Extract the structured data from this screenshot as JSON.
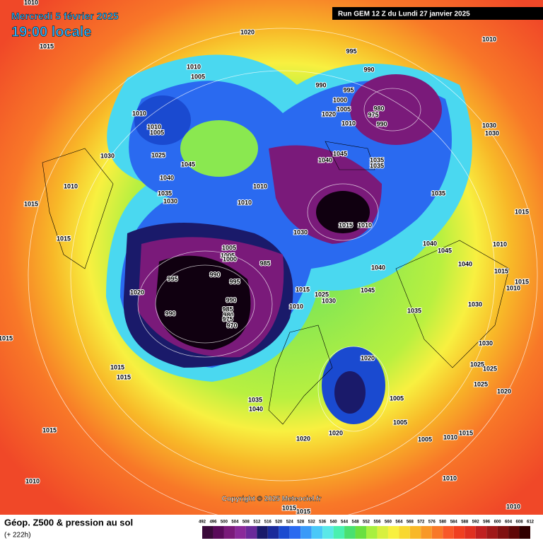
{
  "header": {
    "date": "Mercredi 5 février 2025",
    "time": "19:00 locale",
    "run": "Run GEM 12 Z du Lundi 27 janvier 2025"
  },
  "footer": {
    "title": "Géop. Z500 & pression au sol",
    "lead": "(+ 222h)",
    "copyright": "Copyright © 2025 Meteociel.fr"
  },
  "colorbar": {
    "ticks": [
      492,
      496,
      500,
      504,
      508,
      512,
      516,
      520,
      524,
      528,
      532,
      536,
      540,
      544,
      548,
      552,
      556,
      560,
      564,
      568,
      572,
      576,
      580,
      584,
      588,
      592,
      596,
      600,
      604,
      608,
      612
    ],
    "colors": [
      "#3a0a3a",
      "#5a0a5a",
      "#7a1a7a",
      "#8a2a9a",
      "#6a2a9a",
      "#1a1a6a",
      "#1a2a9a",
      "#1a4ad0",
      "#2a6af0",
      "#3a9af8",
      "#4ac8f8",
      "#5ae8e8",
      "#4af0b0",
      "#4ae070",
      "#6ae040",
      "#a8f040",
      "#d8f040",
      "#f8f040",
      "#f8d830",
      "#f8b828",
      "#f89828",
      "#f87828",
      "#f85828",
      "#f04020",
      "#e03020",
      "#c02020",
      "#a01818",
      "#801010",
      "#600808",
      "#300000"
    ]
  },
  "pressure_labels": [
    1010,
    1020,
    1015,
    995,
    1010,
    990,
    1010,
    1005,
    990,
    995,
    980,
    1000,
    1005,
    975,
    990,
    1010,
    1020,
    1010,
    1010,
    1005,
    1030,
    1030,
    1030,
    1025,
    1045,
    1040,
    1045,
    1035,
    1035,
    1040,
    1010,
    1010,
    1035,
    1035,
    1030,
    1015,
    1010,
    1015,
    1015,
    1010,
    1030,
    1015,
    1040,
    1005,
    1045,
    1010,
    1005,
    1000,
    985,
    1040,
    1040,
    990,
    995,
    995,
    1015,
    1015,
    1010,
    1020,
    1015,
    1025,
    1030,
    1045,
    990,
    1010,
    1030,
    985,
    1035,
    990,
    980,
    975,
    970,
    1015,
    1030,
    1020,
    1025,
    1015,
    1025,
    1015,
    1025,
    1020,
    1035,
    1005,
    1040,
    1005,
    1020,
    1015,
    1010,
    1015,
    1020,
    1005,
    1010,
    1010,
    1015,
    1015,
    1010
  ]
}
